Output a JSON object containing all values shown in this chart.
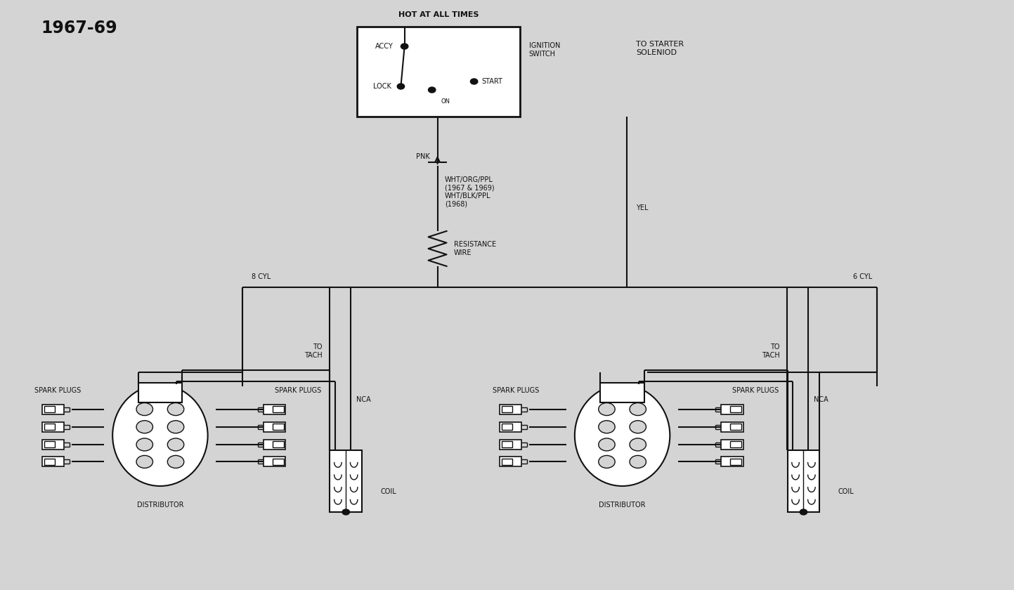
{
  "bg_color": "#d4d4d4",
  "line_color": "#111111",
  "title": "1967-69",
  "title_fontsize": 16,
  "label_fontsize": 8,
  "small_fontsize": 7,
  "ignition_label": "IGNITION\nSWITCH",
  "hot_label": "HOT AT ALL TIMES",
  "accy_label": "ACCY",
  "lock_label": "LOCK",
  "on_label": "ON",
  "start_label": "START",
  "pnk_label": "PNK",
  "yel_label": "YEL",
  "wht_label": "WHT/ORG/PPL\n(1967 & 1969)\nWHT/BLK/PPL\n(1968)",
  "resistance_label": "RESISTANCE\nWIRE",
  "to_starter_label": "TO STARTER\nSOLENIOD",
  "cyl8_label": "8 CYL",
  "cyl6_label": "6 CYL",
  "tach_label": "TO\nTACH",
  "nca_label": "NCA",
  "coil_label": "COIL",
  "dist_label": "DISTRIBUTOR",
  "spark_plugs_label": "SPARK PLUGS"
}
